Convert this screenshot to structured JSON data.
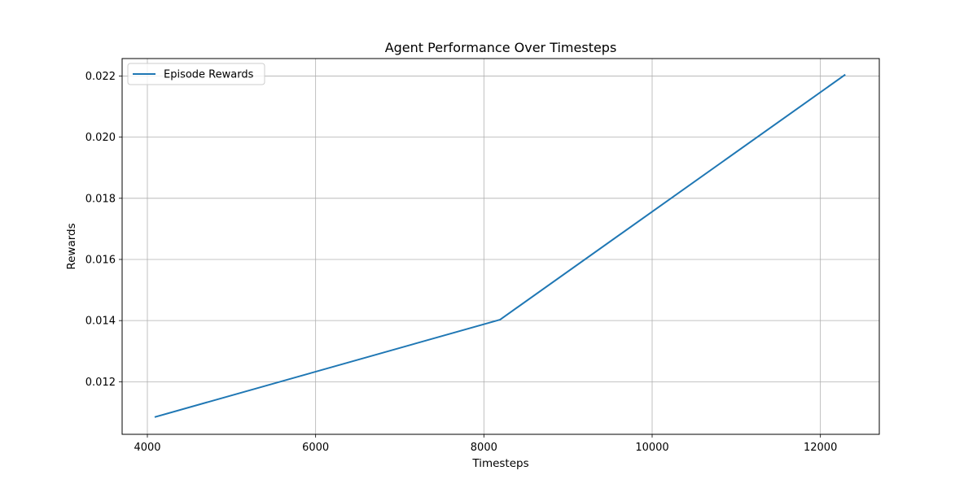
{
  "chart_data": {
    "type": "line",
    "title": "Agent Performance Over Timesteps",
    "xlabel": "Timesteps",
    "ylabel": "Rewards",
    "xlim": [
      3700,
      12700
    ],
    "ylim": [
      0.01028,
      0.02257
    ],
    "xticks": [
      4000,
      6000,
      8000,
      10000,
      12000
    ],
    "yticks": [
      0.012,
      0.014,
      0.016,
      0.018,
      0.02,
      0.022
    ],
    "xtick_labels": [
      "4000",
      "6000",
      "8000",
      "10000",
      "12000"
    ],
    "ytick_labels": [
      "0.012",
      "0.014",
      "0.016",
      "0.018",
      "0.020",
      "0.022"
    ],
    "grid": true,
    "legend_position": "top-left",
    "series": [
      {
        "name": "Episode Rewards",
        "color": "#1f77b4",
        "x": [
          4096,
          8192,
          12288
        ],
        "y": [
          0.01085,
          0.01403,
          0.02203
        ]
      }
    ]
  }
}
